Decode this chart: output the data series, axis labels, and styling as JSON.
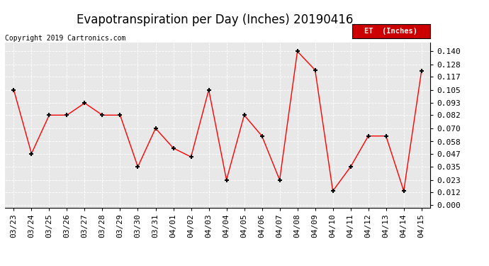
{
  "title": "Evapotranspiration per Day (Inches) 20190416",
  "copyright": "Copyright 2019 Cartronics.com",
  "legend_label": "ET  (Inches)",
  "dates": [
    "03/23",
    "03/24",
    "03/25",
    "03/26",
    "03/27",
    "03/28",
    "03/29",
    "03/30",
    "03/31",
    "04/01",
    "04/02",
    "04/03",
    "04/04",
    "04/05",
    "04/06",
    "04/07",
    "04/08",
    "04/09",
    "04/10",
    "04/11",
    "04/12",
    "04/13",
    "04/14",
    "04/15"
  ],
  "values": [
    0.105,
    0.047,
    0.082,
    0.082,
    0.093,
    0.082,
    0.082,
    0.035,
    0.07,
    0.052,
    0.044,
    0.105,
    0.023,
    0.082,
    0.063,
    0.023,
    0.14,
    0.123,
    0.013,
    0.035,
    0.063,
    0.063,
    0.013,
    0.122
  ],
  "ylim": [
    -0.002,
    0.148
  ],
  "yticks": [
    0.0,
    0.012,
    0.023,
    0.035,
    0.047,
    0.058,
    0.07,
    0.082,
    0.093,
    0.105,
    0.117,
    0.128,
    0.14
  ],
  "line_color": "red",
  "marker": "+",
  "marker_color": "black",
  "background_color": "#ffffff",
  "plot_bg_color": "#e8e8e8",
  "grid_color": "#ffffff",
  "legend_bg": "#cc0000",
  "legend_text_color": "#ffffff",
  "title_fontsize": 12,
  "copyright_fontsize": 7,
  "tick_fontsize": 8,
  "tick_font": "monospace"
}
